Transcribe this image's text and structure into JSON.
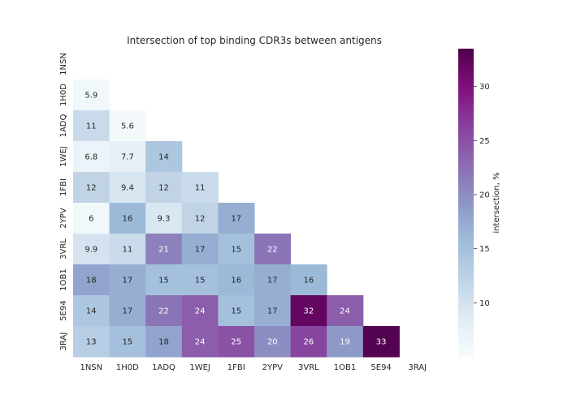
{
  "chart_data": {
    "type": "heatmap",
    "title": "Intersection of top binding CDR3s between antigens",
    "xlabel": "",
    "ylabel": "",
    "row_labels": [
      "1NSN",
      "1H0D",
      "1ADQ",
      "1WEJ",
      "1FBI",
      "2YPV",
      "3VRL",
      "1OB1",
      "5E94",
      "3RAJ"
    ],
    "col_labels": [
      "1NSN",
      "1H0D",
      "1ADQ",
      "1WEJ",
      "1FBI",
      "2YPV",
      "3VRL",
      "1OB1",
      "5E94",
      "3RAJ"
    ],
    "values": [
      [
        null,
        null,
        null,
        null,
        null,
        null,
        null,
        null,
        null,
        null
      ],
      [
        5.9,
        null,
        null,
        null,
        null,
        null,
        null,
        null,
        null,
        null
      ],
      [
        11,
        5.6,
        null,
        null,
        null,
        null,
        null,
        null,
        null,
        null
      ],
      [
        6.8,
        7.7,
        14,
        null,
        null,
        null,
        null,
        null,
        null,
        null
      ],
      [
        12,
        9.4,
        12,
        11,
        null,
        null,
        null,
        null,
        null,
        null
      ],
      [
        6,
        16,
        9.3,
        12,
        17,
        null,
        null,
        null,
        null,
        null
      ],
      [
        9.9,
        11,
        21,
        17,
        15,
        22,
        null,
        null,
        null,
        null
      ],
      [
        18,
        17,
        15,
        15,
        16,
        17,
        16,
        null,
        null,
        null
      ],
      [
        14,
        17,
        22,
        24,
        15,
        17,
        32,
        24,
        null,
        null
      ],
      [
        13,
        15,
        18,
        24,
        25,
        20,
        26,
        19,
        33,
        null
      ]
    ],
    "colormap": "BuPu",
    "colorbar": {
      "label": "intersection, %",
      "range": [
        5,
        33.5
      ],
      "ticks": [
        10,
        15,
        20,
        25,
        30
      ]
    },
    "grid": false,
    "legend": "colorbar-right"
  }
}
